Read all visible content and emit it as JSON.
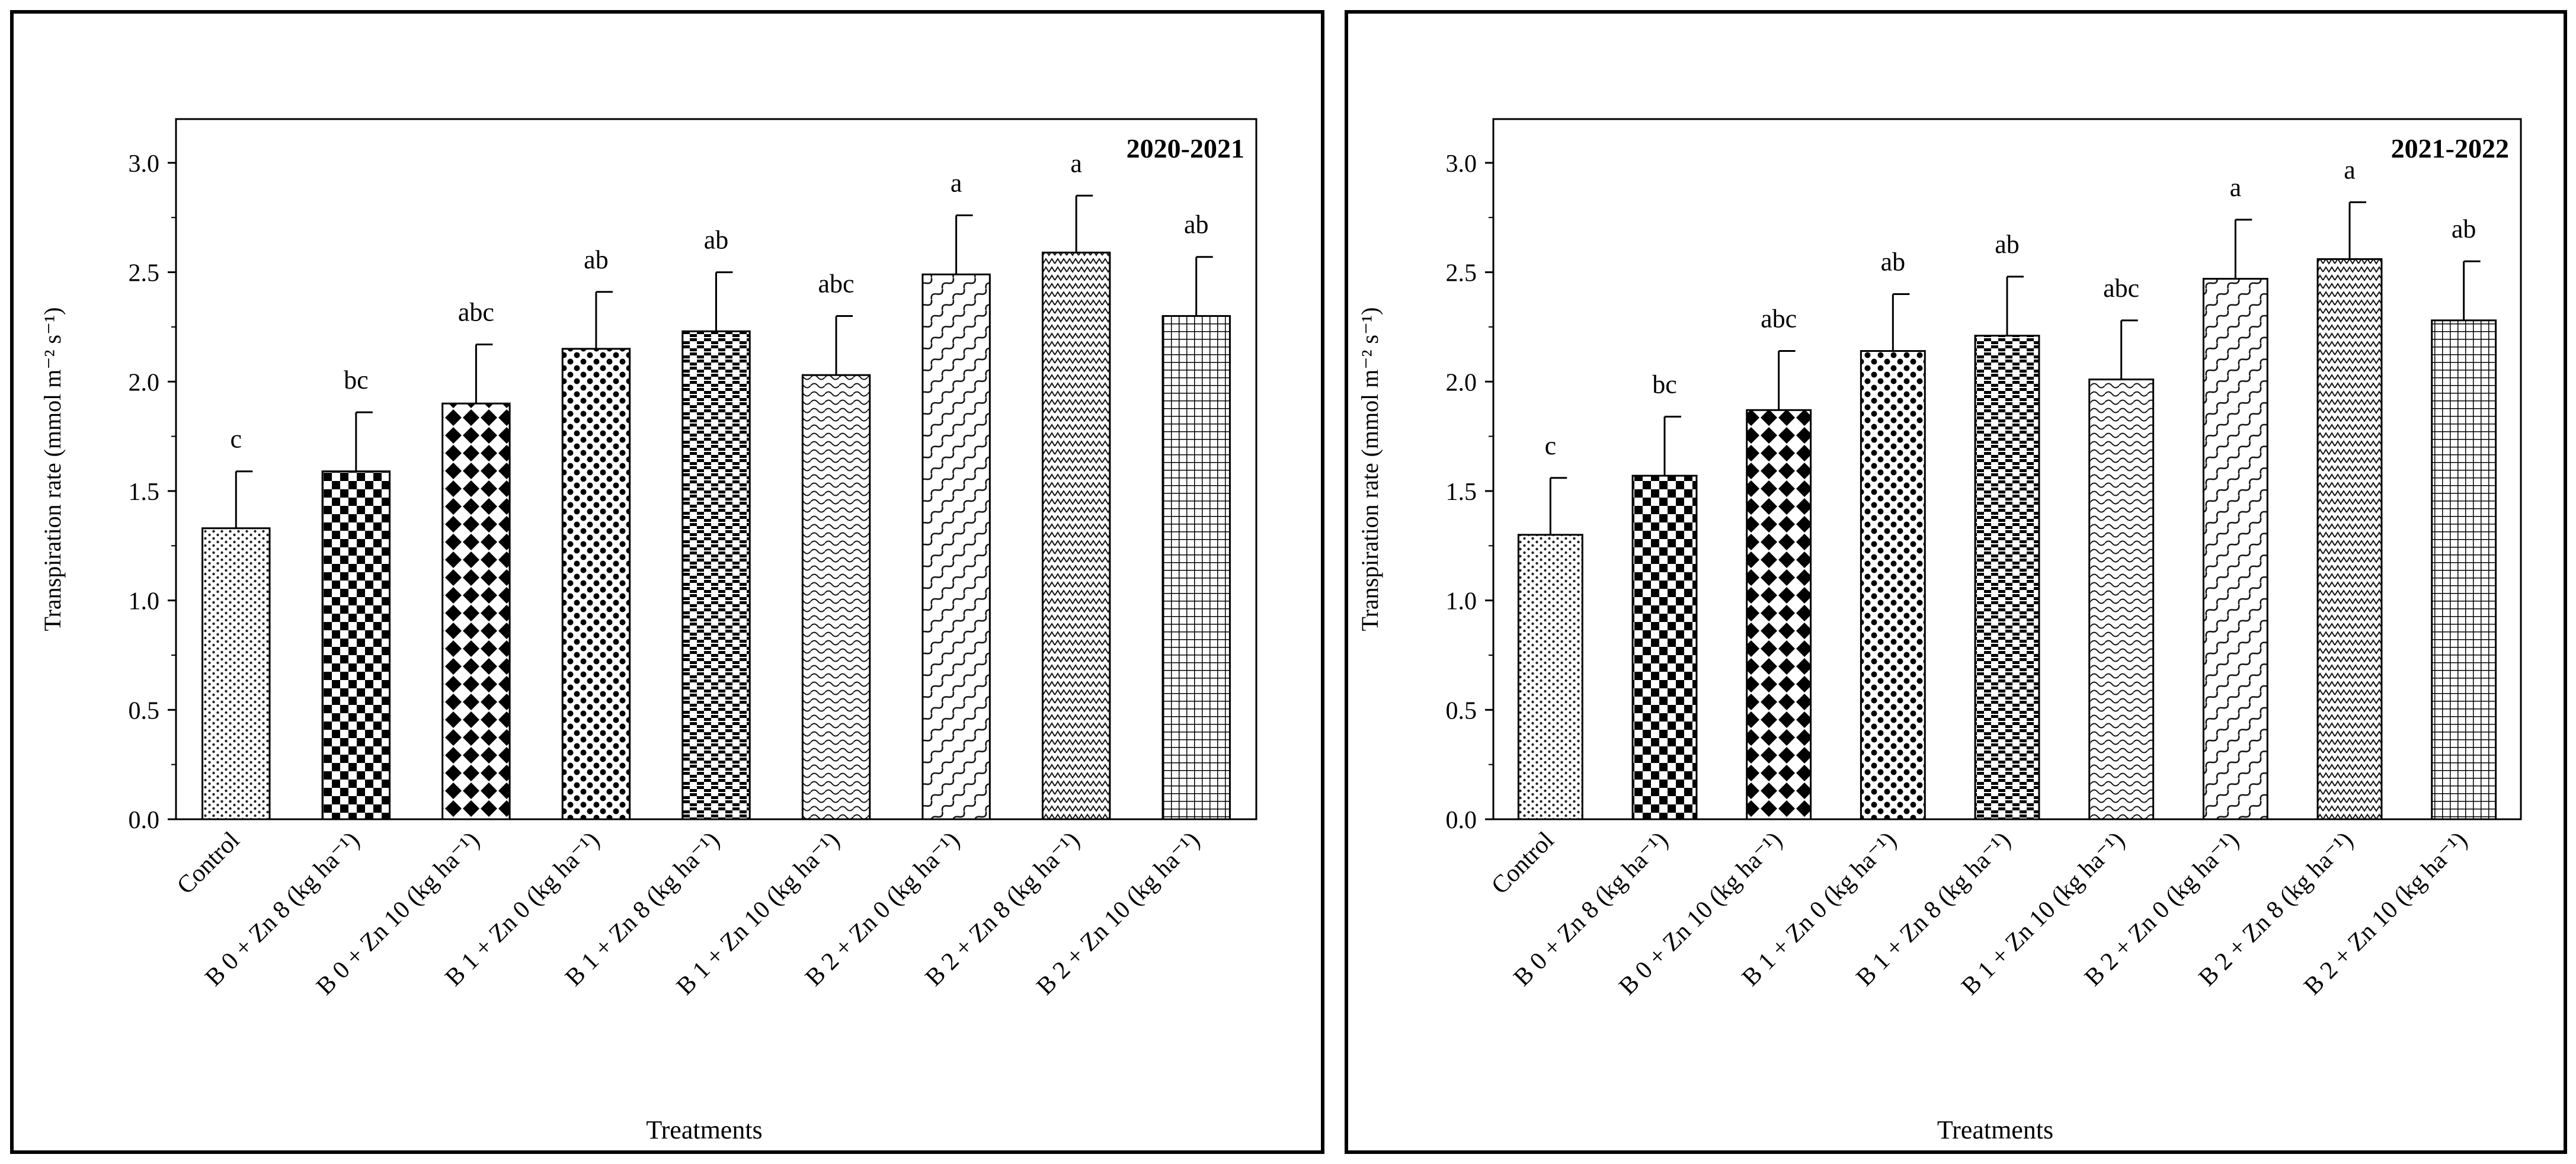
{
  "figure": {
    "categories": [
      {
        "main": "Control",
        "unit": ""
      },
      {
        "main": "B 0 + Zn 8",
        "unit": "(kg ha⁻¹)"
      },
      {
        "main": "B 0 + Zn 10",
        "unit": "(kg ha⁻¹)"
      },
      {
        "main": "B 1 + Zn 0",
        "unit": "(kg ha⁻¹)"
      },
      {
        "main": "B 1 + Zn 8",
        "unit": "(kg ha⁻¹)"
      },
      {
        "main": "B 1 + Zn 10",
        "unit": "(kg ha⁻¹)"
      },
      {
        "main": "B 2 + Zn 0",
        "unit": "(kg ha⁻¹)"
      },
      {
        "main": "B 2 + Zn 8",
        "unit": "(kg ha⁻¹)"
      },
      {
        "main": "B 2 + Zn 10",
        "unit": "(kg ha⁻¹)"
      }
    ],
    "patterns": [
      "dots",
      "checker",
      "diamond",
      "dots-dense",
      "checker-stripe",
      "wave",
      "diag-wave",
      "zigzag",
      "grid"
    ]
  },
  "chart_data": [
    {
      "type": "bar",
      "title": "2020-2021",
      "xlabel": "Treatments",
      "ylabel": "Transpiration rate (mmol m⁻² s⁻¹)",
      "ylim": [
        0,
        3.2
      ],
      "yticks": [
        "0.0",
        "0.5",
        "1.0",
        "1.5",
        "2.0",
        "2.5",
        "3.0"
      ],
      "values": [
        1.33,
        1.59,
        1.9,
        2.15,
        2.23,
        2.03,
        2.49,
        2.59,
        2.3
      ],
      "errors": [
        0.26,
        0.27,
        0.27,
        0.26,
        0.27,
        0.27,
        0.27,
        0.26,
        0.27
      ],
      "letters": [
        "c",
        "bc",
        "abc",
        "ab",
        "ab",
        "abc",
        "a",
        "a",
        "ab"
      ]
    },
    {
      "type": "bar",
      "title": "2021-2022",
      "xlabel": "Treatments",
      "ylabel": "Transpiration rate (mmol m⁻² s⁻¹)",
      "ylim": [
        0,
        3.2
      ],
      "yticks": [
        "0.0",
        "0.5",
        "1.0",
        "1.5",
        "2.0",
        "2.5",
        "3.0"
      ],
      "values": [
        1.3,
        1.57,
        1.87,
        2.14,
        2.21,
        2.01,
        2.47,
        2.56,
        2.28
      ],
      "errors": [
        0.26,
        0.27,
        0.27,
        0.26,
        0.27,
        0.27,
        0.27,
        0.26,
        0.27
      ],
      "letters": [
        "c",
        "bc",
        "abc",
        "ab",
        "ab",
        "abc",
        "a",
        "a",
        "ab"
      ]
    }
  ]
}
